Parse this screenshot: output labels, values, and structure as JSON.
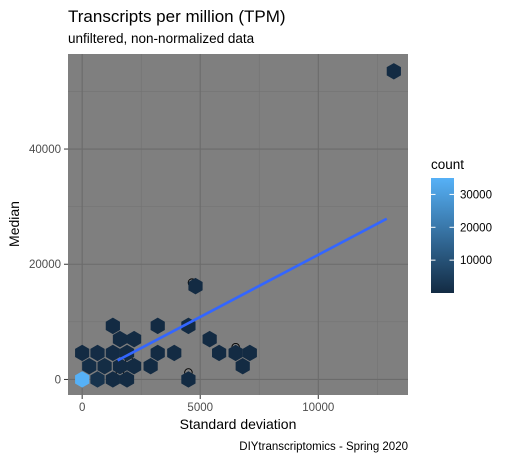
{
  "chart_data": {
    "type": "hexbin",
    "title": "Transcripts per million (TPM)",
    "subtitle": "unfiltered, non-normalized data",
    "xlabel": "Standard deviation",
    "ylabel": "Median",
    "caption": "DIYtranscriptomics - Spring 2020",
    "xlim": [
      -600,
      13800
    ],
    "ylim": [
      -2700,
      56500
    ],
    "x_ticks": [
      0,
      5000,
      10000
    ],
    "x_tick_labels": [
      "0",
      "5000",
      "10000"
    ],
    "y_ticks": [
      0,
      20000,
      40000
    ],
    "y_tick_labels": [
      "0",
      "20000",
      "40000"
    ],
    "panel_background": "#7f7f7f",
    "grid": true,
    "legend": {
      "title": "count",
      "placement": "right",
      "low_color": "#132b43",
      "high_color": "#56b1f7",
      "range": [
        1,
        35000
      ],
      "breaks": [
        10000,
        20000,
        30000
      ],
      "break_labels": [
        "10000",
        "20000",
        "30000"
      ]
    },
    "trend_line": {
      "color": "#3366ff",
      "x": [
        1500,
        12900
      ],
      "y": [
        3300,
        27900
      ]
    },
    "points": [
      {
        "x": 13150,
        "y": 53500
      },
      {
        "x": 4650,
        "y": 16800
      },
      {
        "x": 1300,
        "y": 9600
      },
      {
        "x": 3200,
        "y": 9500
      },
      {
        "x": 6500,
        "y": 5600
      },
      {
        "x": 4500,
        "y": 1200
      },
      {
        "x": 1600,
        "y": 1200
      },
      {
        "x": 2000,
        "y": 3200
      }
    ],
    "hexbins": [
      {
        "x": 13200,
        "y": 53500,
        "count": 1
      },
      {
        "x": 4800,
        "y": 16200,
        "count": 1
      },
      {
        "x": 1300,
        "y": 9300,
        "count": 3
      },
      {
        "x": 3200,
        "y": 9300,
        "count": 1
      },
      {
        "x": 4500,
        "y": 9300,
        "count": 1
      },
      {
        "x": 1600,
        "y": 7000,
        "count": 2
      },
      {
        "x": 2200,
        "y": 7000,
        "count": 1
      },
      {
        "x": 5400,
        "y": 7000,
        "count": 1
      },
      {
        "x": 0,
        "y": 4600,
        "count": 20
      },
      {
        "x": 650,
        "y": 4600,
        "count": 300
      },
      {
        "x": 1300,
        "y": 4600,
        "count": 100
      },
      {
        "x": 1900,
        "y": 4600,
        "count": 10
      },
      {
        "x": 3200,
        "y": 4600,
        "count": 1
      },
      {
        "x": 3900,
        "y": 4600,
        "count": 1
      },
      {
        "x": 5800,
        "y": 4600,
        "count": 1
      },
      {
        "x": 6500,
        "y": 4600,
        "count": 1
      },
      {
        "x": 7100,
        "y": 4600,
        "count": 1
      },
      {
        "x": 300,
        "y": 2300,
        "count": 700
      },
      {
        "x": 950,
        "y": 2300,
        "count": 400
      },
      {
        "x": 1600,
        "y": 2300,
        "count": 60
      },
      {
        "x": 2200,
        "y": 2300,
        "count": 5
      },
      {
        "x": 2900,
        "y": 2300,
        "count": 2
      },
      {
        "x": 6800,
        "y": 2300,
        "count": 1
      },
      {
        "x": 0,
        "y": 0,
        "count": 35000
      },
      {
        "x": 650,
        "y": 0,
        "count": 2000
      },
      {
        "x": 1300,
        "y": 0,
        "count": 80
      },
      {
        "x": 1900,
        "y": 0,
        "count": 5
      },
      {
        "x": 4500,
        "y": 0,
        "count": 1
      }
    ]
  }
}
